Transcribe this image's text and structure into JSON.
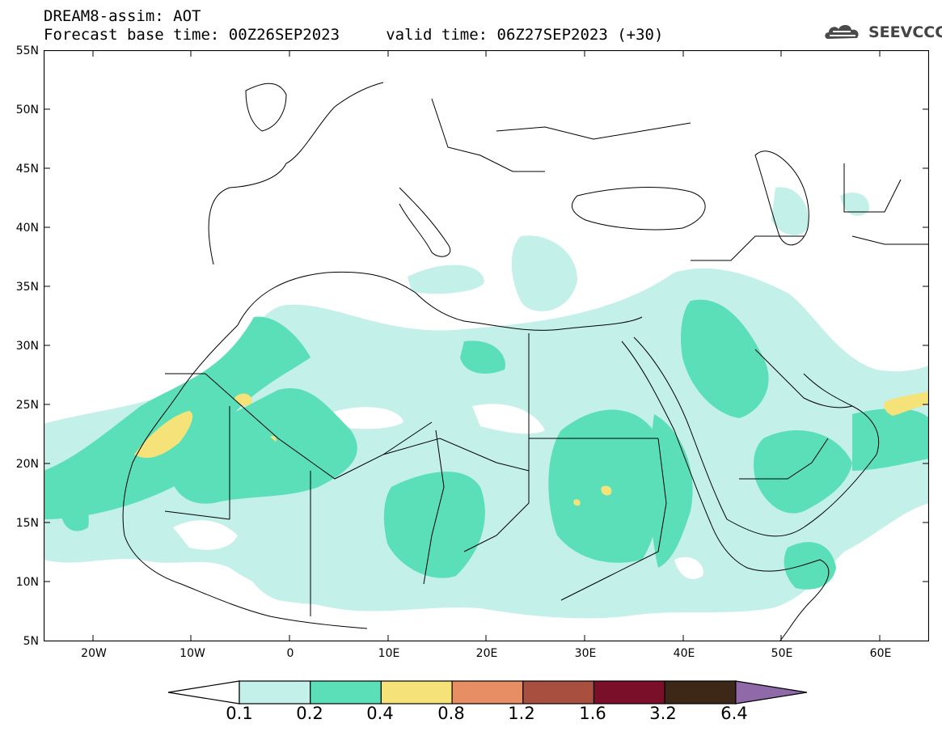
{
  "title": {
    "line1": "DREAM8-assim: AOT",
    "line2": "Forecast base time: 00Z26SEP2023     valid time: 06Z27SEP2023 (+30)"
  },
  "logo": {
    "text": "SEEVCCC"
  },
  "map": {
    "lat_ticks": [
      "55N",
      "50N",
      "45N",
      "40N",
      "35N",
      "30N",
      "25N",
      "20N",
      "15N",
      "10N",
      "5N"
    ],
    "lon_ticks": [
      "20W",
      "10W",
      "0",
      "10E",
      "20E",
      "30E",
      "40E",
      "50E",
      "60E"
    ],
    "lon_range": [
      -25,
      65
    ],
    "lat_range": [
      5,
      55
    ]
  },
  "colorbar": {
    "levels": [
      "0.1",
      "0.2",
      "0.4",
      "0.8",
      "1.2",
      "1.6",
      "3.2",
      "6.4"
    ],
    "colors": [
      "#ffffff",
      "#c3f0e8",
      "#5adfb8",
      "#f5e37a",
      "#e88e64",
      "#a94f3f",
      "#7a0f2a",
      "#3d2817",
      "#8f69a8"
    ]
  }
}
